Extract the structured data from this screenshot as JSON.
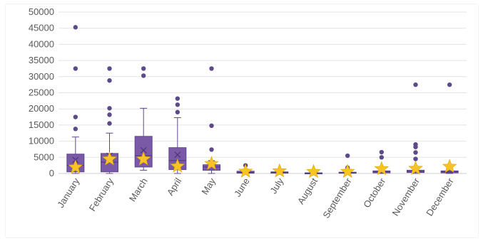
{
  "chart_data": {
    "type": "box",
    "title": "",
    "xlabel": "",
    "ylabel": "",
    "ylim": [
      0,
      50000
    ],
    "y_ticks": [
      0,
      5000,
      10000,
      15000,
      20000,
      25000,
      30000,
      35000,
      40000,
      45000,
      50000
    ],
    "y_tick_labels": [
      "0",
      "5000",
      "10000",
      "15000",
      "20000",
      "25000",
      "30000",
      "35000",
      "40000",
      "45000",
      "50000"
    ],
    "grid": true,
    "categories": [
      "January",
      "February",
      "March",
      "April",
      "May",
      "June",
      "July",
      "August",
      "September",
      "October",
      "November",
      "December"
    ],
    "boxes": [
      {
        "min": 0,
        "q1": 500,
        "median": 2500,
        "q3": 6000,
        "max": 11300,
        "mean": 4200,
        "star": 1500,
        "outliers": [
          45300,
          32500,
          17500,
          13800
        ]
      },
      {
        "min": 0,
        "q1": 500,
        "median": 3500,
        "q3": 6200,
        "max": 12500,
        "mean": 5500,
        "star": 4000,
        "outliers": [
          32500,
          28800,
          20200,
          18200,
          15500
        ]
      },
      {
        "min": 1000,
        "q1": 2000,
        "median": 5500,
        "q3": 11500,
        "max": 20200,
        "mean": 7200,
        "star": 4000,
        "outliers": [
          32500,
          30300
        ]
      },
      {
        "min": 0,
        "q1": 1200,
        "median": 4000,
        "q3": 8000,
        "max": 17300,
        "mean": 5800,
        "star": 1800,
        "outliers": [
          23200,
          21300,
          19000
        ]
      },
      {
        "min": 0,
        "q1": 1000,
        "median": 2000,
        "q3": 2700,
        "max": 3800,
        "mean": 3200,
        "star": 2600,
        "outliers": [
          32500,
          14800,
          7400
        ]
      },
      {
        "min": 0,
        "q1": 100,
        "median": 300,
        "q3": 700,
        "max": 1200,
        "mean": 500,
        "star": 200,
        "outliers": [
          2500
        ]
      },
      {
        "min": 0,
        "q1": 100,
        "median": 250,
        "q3": 500,
        "max": 700,
        "mean": 400,
        "star": 300,
        "outliers": []
      },
      {
        "min": 0,
        "q1": 50,
        "median": 100,
        "q3": 200,
        "max": 400,
        "mean": 200,
        "star": 100,
        "outliers": []
      },
      {
        "min": 0,
        "q1": 100,
        "median": 200,
        "q3": 400,
        "max": 700,
        "mean": 500,
        "star": 150,
        "outliers": [
          5500,
          1800,
          1100
        ]
      },
      {
        "min": 0,
        "q1": 200,
        "median": 500,
        "q3": 800,
        "max": 1500,
        "mean": 900,
        "star": 1000,
        "outliers": [
          6600,
          5000
        ]
      },
      {
        "min": 0,
        "q1": 300,
        "median": 600,
        "q3": 1000,
        "max": 1800,
        "mean": 1200,
        "star": 1100,
        "outliers": [
          27500,
          9000,
          8200,
          6500,
          4500
        ]
      },
      {
        "min": 0,
        "q1": 200,
        "median": 500,
        "q3": 800,
        "max": 1400,
        "mean": 1300,
        "star": 1700,
        "outliers": [
          27500
        ]
      }
    ],
    "colors": {
      "box_fill": "#7a5aa6",
      "box_stroke": "#5e4590",
      "outlier": "#5d4a8a",
      "star_fill": "#f7c325",
      "star_stroke": "#e0a800",
      "grid": "#e3e3e3",
      "axis": "#cfcfcf",
      "text": "#595959"
    }
  }
}
